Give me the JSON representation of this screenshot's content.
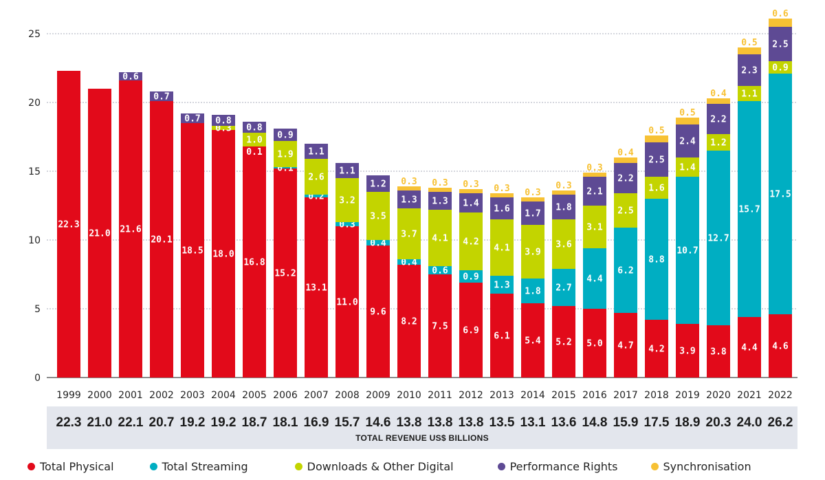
{
  "chart_data": {
    "type": "bar",
    "stacked": true,
    "title": "",
    "xlabel": "",
    "ylabel": "",
    "ylim": [
      0,
      26
    ],
    "yticks": [
      0,
      5,
      10,
      15,
      20,
      25
    ],
    "grid": "horizontal-dashed",
    "categories": [
      "1999",
      "2000",
      "2001",
      "2002",
      "2003",
      "2004",
      "2005",
      "2006",
      "2007",
      "2008",
      "2009",
      "2010",
      "2011",
      "2012",
      "2013",
      "2014",
      "2015",
      "2016",
      "2017",
      "2018",
      "2019",
      "2020",
      "2021",
      "2022"
    ],
    "series": [
      {
        "name": "Total Physical",
        "color": "#e20a1a",
        "values": [
          22.3,
          21.0,
          21.6,
          20.1,
          18.5,
          18.0,
          16.8,
          15.2,
          13.1,
          11.0,
          9.6,
          8.2,
          7.5,
          6.9,
          6.1,
          5.4,
          5.2,
          5.0,
          4.7,
          4.2,
          3.9,
          3.8,
          4.4,
          4.6
        ]
      },
      {
        "name": "Total Streaming",
        "color": "#00aec2",
        "values": [
          null,
          null,
          null,
          null,
          null,
          null,
          null,
          0.1,
          0.2,
          0.3,
          0.4,
          0.4,
          0.6,
          0.9,
          1.3,
          1.8,
          2.7,
          4.4,
          6.2,
          8.8,
          10.7,
          12.7,
          15.7,
          17.5
        ]
      },
      {
        "name": "Downloads & Other Digital",
        "color": "#c3d400",
        "values": [
          null,
          null,
          null,
          null,
          null,
          0.3,
          1.0,
          1.9,
          2.6,
          3.2,
          3.5,
          3.7,
          4.1,
          4.2,
          4.1,
          3.9,
          3.6,
          3.1,
          2.5,
          1.6,
          1.4,
          1.2,
          1.1,
          0.9
        ]
      },
      {
        "name": "Performance Rights",
        "color": "#5e4a94",
        "values": [
          null,
          null,
          0.6,
          0.7,
          0.7,
          0.8,
          0.8,
          0.9,
          1.1,
          1.1,
          1.2,
          1.3,
          1.3,
          1.4,
          1.6,
          1.7,
          1.8,
          2.1,
          2.2,
          2.5,
          2.4,
          2.2,
          2.3,
          2.5
        ]
      },
      {
        "name": "Synchronisation",
        "color": "#f7c134",
        "values": [
          null,
          null,
          null,
          null,
          null,
          null,
          null,
          null,
          null,
          null,
          null,
          0.3,
          0.3,
          0.3,
          0.3,
          0.3,
          0.3,
          0.3,
          0.4,
          0.5,
          0.5,
          0.4,
          0.5,
          0.6
        ]
      }
    ],
    "extra_segment_labels": [
      {
        "category": "2005",
        "text": "0.1"
      }
    ],
    "totals": [
      22.3,
      21.0,
      22.1,
      20.7,
      19.2,
      19.2,
      18.7,
      18.1,
      16.9,
      15.7,
      14.6,
      13.8,
      13.8,
      13.8,
      13.5,
      13.1,
      13.6,
      14.8,
      15.9,
      17.5,
      18.9,
      20.3,
      24.0,
      26.2
    ],
    "totals_caption": "TOTAL REVENUE US$ BILLIONS",
    "legend_position": "bottom"
  }
}
